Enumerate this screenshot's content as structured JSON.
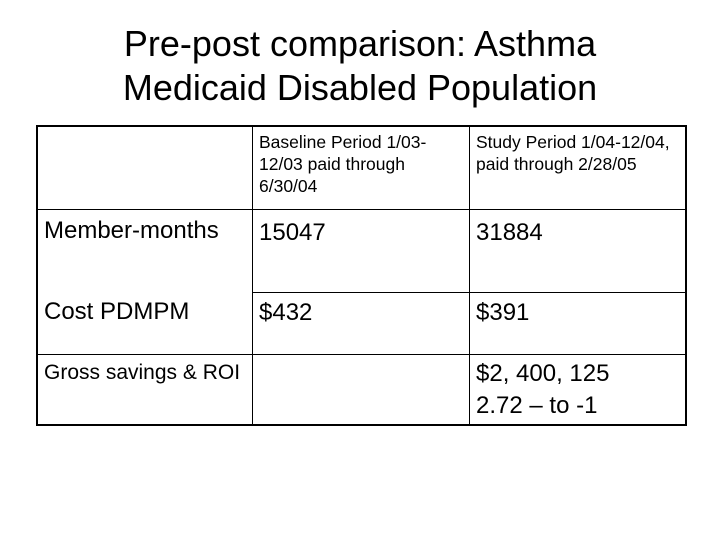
{
  "title": {
    "line1": "Pre-post comparison:  Asthma",
    "line2": "Medicaid Disabled Population"
  },
  "table": {
    "header": {
      "empty": "",
      "baseline": "Baseline Period 1/03-12/03 paid through 6/30/04",
      "study": "Study Period 1/04-12/04, paid through 2/28/05"
    },
    "rows": [
      {
        "label": "Member-months",
        "baseline": "15047",
        "study": "31884"
      },
      {
        "label": "Cost PDMPM",
        "baseline": "$432",
        "study": "$391"
      }
    ],
    "savings": {
      "label": "Gross savings & ROI",
      "baseline": "",
      "amount": "$2, 400, 125",
      "roi": "2.72 – to -1"
    }
  }
}
